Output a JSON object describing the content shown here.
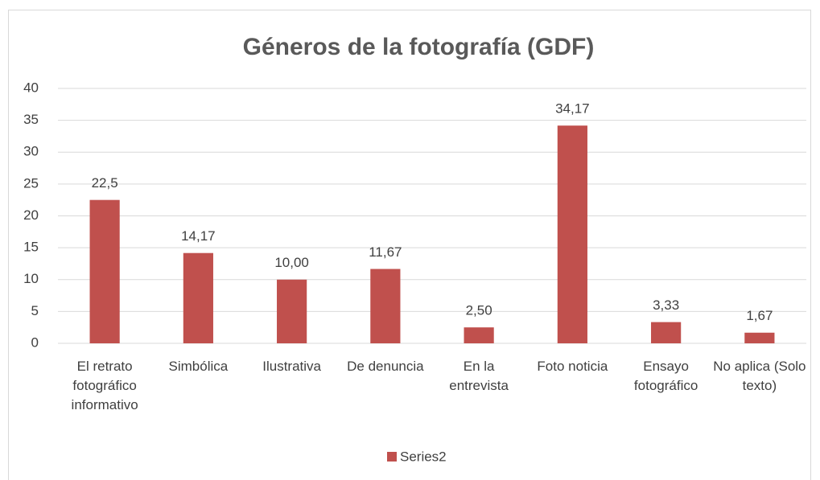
{
  "chart_data": {
    "type": "bar",
    "title": "Géneros de la fotografía (GDF)",
    "categories": [
      "El retrato fotográfico informativo",
      "Simbólica",
      "Ilustrativa",
      "De denuncia",
      "En la entrevista",
      "Foto noticia",
      "Ensayo fotográfico",
      "No aplica (Solo texto)"
    ],
    "series": [
      {
        "name": "Series2",
        "color": "#c0504d",
        "values": [
          22.5,
          14.17,
          10,
          11.67,
          2.5,
          34.17,
          3.33,
          1.67
        ],
        "value_labels": [
          "22,5",
          "14,17",
          "10,00",
          "11,67",
          "2,50",
          "34,17",
          "3,33",
          "1,67"
        ]
      }
    ],
    "ylim": [
      0,
      40
    ],
    "yticks": [
      0,
      5,
      10,
      15,
      20,
      25,
      30,
      35,
      40
    ],
    "grid": true,
    "legend": "bottom"
  }
}
